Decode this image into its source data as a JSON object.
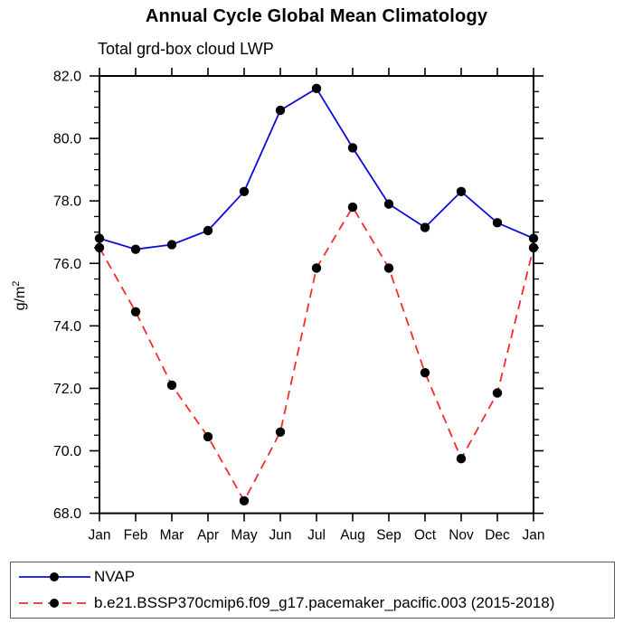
{
  "chart_data": {
    "type": "line",
    "title": "Annual Cycle Global Mean Climatology",
    "subtitle": "Total grd-box cloud LWP",
    "ylabel": "g/m²",
    "ylabel_base": "g/m",
    "ylabel_sup": "2",
    "categories": [
      "Jan",
      "Feb",
      "Mar",
      "Apr",
      "May",
      "Jun",
      "Jul",
      "Aug",
      "Sep",
      "Oct",
      "Nov",
      "Dec",
      "Jan"
    ],
    "ylim": [
      68.0,
      82.0
    ],
    "ytick_step": 2.0,
    "yminor_step": 0.5,
    "ytick_labels": [
      "68.0",
      "70.0",
      "72.0",
      "74.0",
      "76.0",
      "78.0",
      "80.0",
      "82.0"
    ],
    "grid": false,
    "legend_position": "bottom",
    "axis_color": "#000000",
    "series": [
      {
        "name": "NVAP",
        "color": "#0b0bdd",
        "line_style": "solid",
        "marker": "filled-circle",
        "marker_color": "#000000",
        "values": [
          76.8,
          76.45,
          76.6,
          77.05,
          78.3,
          80.9,
          81.6,
          79.7,
          77.9,
          77.15,
          78.3,
          77.3,
          76.8
        ]
      },
      {
        "name": "b.e21.BSSP370cmip6.f09_g17.pacemaker_pacific.003 (2015-2018)",
        "color": "#f32b2b",
        "line_style": "dashed",
        "marker": "filled-circle",
        "marker_color": "#000000",
        "values": [
          76.5,
          74.45,
          72.1,
          70.45,
          68.4,
          70.6,
          75.85,
          77.8,
          75.85,
          72.5,
          69.75,
          71.85,
          76.5
        ]
      }
    ]
  }
}
